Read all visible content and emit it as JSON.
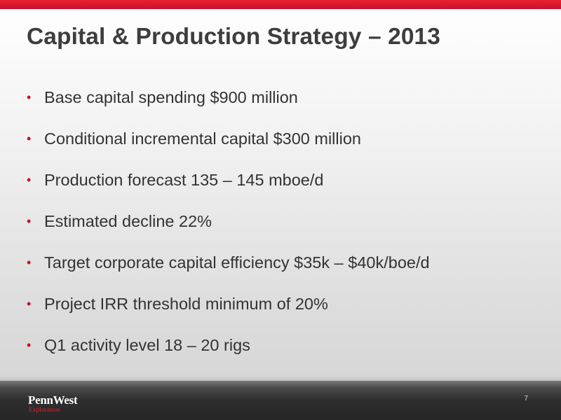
{
  "slide": {
    "title": "Capital & Production Strategy – 2013",
    "bullet_symbol": "•",
    "bullets": [
      "Base capital spending $900 million",
      "Conditional incremental capital $300 million",
      "Production forecast 135 – 145 mboe/d",
      "Estimated decline 22%",
      "Target corporate capital efficiency $35k – $40k/boe/d",
      "Project IRR threshold minimum of 20%",
      "Q1 activity level 18 – 20 rigs"
    ],
    "page_number": "7"
  },
  "logo": {
    "name": "PennWest",
    "subtitle": "Exploration"
  },
  "colors": {
    "accent_red": "#c8102e",
    "title_text": "#3d3d3d",
    "body_text": "#333333",
    "footer_dark": "#2e2e2e"
  }
}
